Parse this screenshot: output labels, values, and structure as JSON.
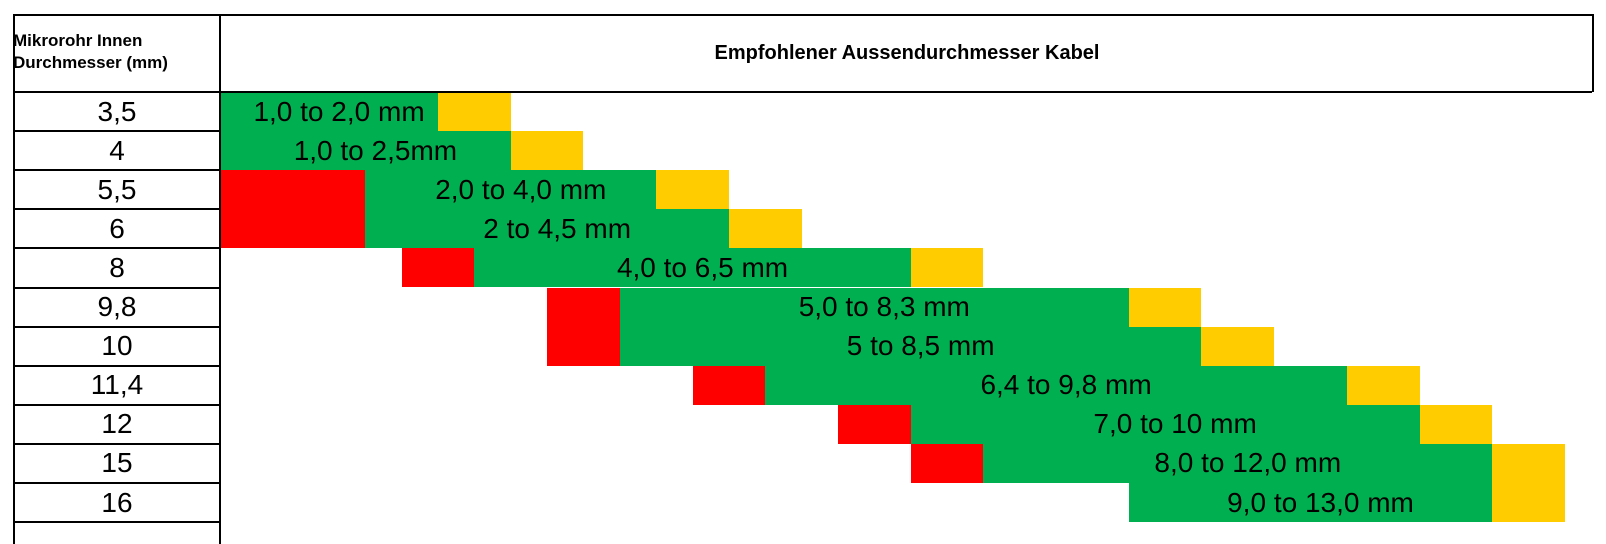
{
  "table": {
    "col1_header_line1": "Mikrorohr Innen",
    "col1_header_line2": "Durchmesser (mm)",
    "col2_header": "Empfohlener Aussendurchmesser Kabel"
  },
  "colors": {
    "green": "#00b050",
    "yellow": "#ffcc00",
    "red": "#ff0000",
    "grid": "#000000"
  },
  "chart_data": {
    "type": "table",
    "rows": [
      {
        "id": "3,5",
        "label": "1,0 to 2,0 mm",
        "red": 0,
        "green": 3,
        "yellow": 1
      },
      {
        "id": "4",
        "label": "1,0 to 2,5mm",
        "red": 0,
        "green": 4,
        "yellow": 1
      },
      {
        "id": "5,5",
        "label": "2,0 to 4,0 mm",
        "red": 2,
        "green": 4,
        "yellow": 1
      },
      {
        "id": "6",
        "label": "2 to 4,5 mm",
        "red": 2,
        "green": 5,
        "yellow": 1
      },
      {
        "id": "8",
        "label": "4,0 to 6,5 mm",
        "red": 1,
        "green": 6,
        "yellow": 1
      },
      {
        "id": "9,8",
        "label": "5,0 to 8,3 mm",
        "red": 1,
        "green": 7,
        "yellow": 1
      },
      {
        "id": "10",
        "label": "5 to 8,5 mm",
        "red": 1,
        "green": 8,
        "yellow": 1
      },
      {
        "id": "11,4",
        "label": "6,4 to 9,8 mm",
        "red": 1,
        "green": 8,
        "yellow": 1
      },
      {
        "id": "12",
        "label": "7,0 to 10 mm",
        "red": 1,
        "green": 7,
        "yellow": 1
      },
      {
        "id": "15",
        "label": "8,0 to 12,0 mm",
        "red": 1,
        "green": 7,
        "yellow": 1
      },
      {
        "id": "16",
        "label": "9,0 to 13,0 mm",
        "red": 0,
        "green": 5,
        "yellow": 1
      }
    ]
  }
}
